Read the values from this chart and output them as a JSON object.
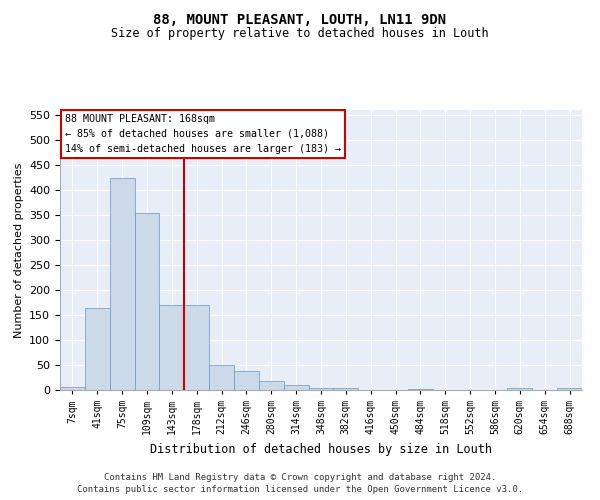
{
  "title": "88, MOUNT PLEASANT, LOUTH, LN11 9DN",
  "subtitle": "Size of property relative to detached houses in Louth",
  "xlabel": "Distribution of detached houses by size in Louth",
  "ylabel": "Number of detached properties",
  "footer_line1": "Contains HM Land Registry data © Crown copyright and database right 2024.",
  "footer_line2": "Contains public sector information licensed under the Open Government Licence v3.0.",
  "annotation_title": "88 MOUNT PLEASANT: 168sqm",
  "annotation_line1": "← 85% of detached houses are smaller (1,088)",
  "annotation_line2": "14% of semi-detached houses are larger (183) →",
  "bar_color": "#ccd9e8",
  "bar_edge_color": "#6699bb",
  "marker_line_color": "#cc0000",
  "annotation_box_color": "#cc0000",
  "background_color": "#e8eef8",
  "categories": [
    "7sqm",
    "41sqm",
    "75sqm",
    "109sqm",
    "143sqm",
    "178sqm",
    "212sqm",
    "246sqm",
    "280sqm",
    "314sqm",
    "348sqm",
    "382sqm",
    "416sqm",
    "450sqm",
    "484sqm",
    "518sqm",
    "552sqm",
    "586sqm",
    "620sqm",
    "654sqm",
    "688sqm"
  ],
  "values": [
    7,
    165,
    425,
    355,
    170,
    170,
    50,
    38,
    18,
    10,
    4,
    4,
    0,
    0,
    3,
    0,
    0,
    0,
    4,
    0,
    4
  ],
  "marker_index": 5,
  "ylim": [
    0,
    560
  ],
  "yticks": [
    0,
    50,
    100,
    150,
    200,
    250,
    300,
    350,
    400,
    450,
    500,
    550
  ]
}
